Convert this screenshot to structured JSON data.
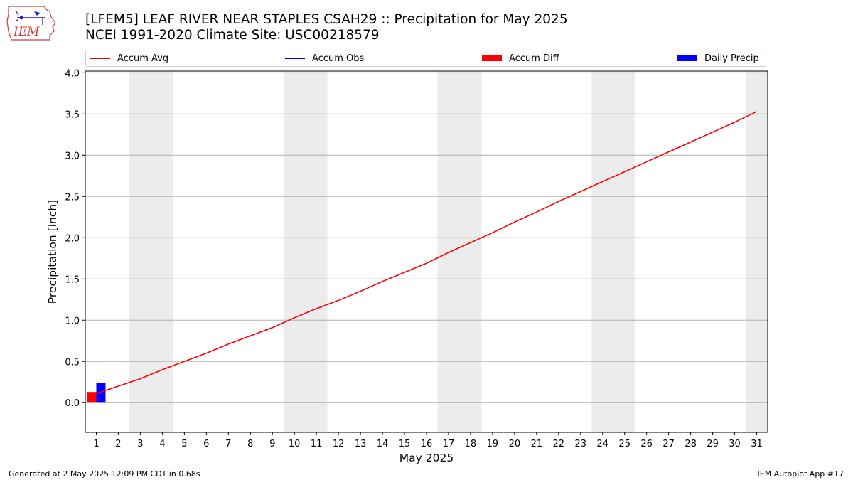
{
  "header": {
    "title_line1": "[LFEM5] LEAF RIVER NEAR STAPLES CSAH29 :: Precipitation for May 2025",
    "title_line2": "NCEI 1991-2020 Climate Site: USC00218579",
    "logo_text": "IEM"
  },
  "legend": [
    {
      "label": "Accum Avg",
      "color": "#ff0000",
      "kind": "line"
    },
    {
      "label": "Accum Obs",
      "color": "#0000ff",
      "kind": "line"
    },
    {
      "label": "Accum Diff",
      "color": "#ff0000",
      "kind": "box"
    },
    {
      "label": "Daily Precip",
      "color": "#0000ff",
      "kind": "box"
    }
  ],
  "footer": {
    "left": "Generated at 2 May 2025 12:09 PM CDT in 0.68s",
    "right": "IEM Autoplot App #17"
  },
  "chart_data": {
    "type": "line",
    "xlabel": "May 2025",
    "ylabel": "Precipitation [inch]",
    "xlim": [
      0.5,
      31.5
    ],
    "ylim": [
      -0.36,
      4.02
    ],
    "yticks": [
      0.0,
      0.5,
      1.0,
      1.5,
      2.0,
      2.5,
      3.0,
      3.5,
      4.0
    ],
    "ytick_labels": [
      "0.0",
      "0.5",
      "1.0",
      "1.5",
      "2.0",
      "2.5",
      "3.0",
      "3.5",
      "4.0"
    ],
    "xticks": [
      1,
      2,
      3,
      4,
      5,
      6,
      7,
      8,
      9,
      10,
      11,
      12,
      13,
      14,
      15,
      16,
      17,
      18,
      19,
      20,
      21,
      22,
      23,
      24,
      25,
      26,
      27,
      28,
      29,
      30,
      31
    ],
    "grid": "horizontal",
    "weekend_shading": [
      [
        2.5,
        4.5
      ],
      [
        9.5,
        11.5
      ],
      [
        16.5,
        18.5
      ],
      [
        23.5,
        25.5
      ],
      [
        30.5,
        31.5
      ]
    ],
    "weekend_color": "#ececec",
    "series": [
      {
        "name": "Accum Avg",
        "kind": "line",
        "color": "#ff0000",
        "x": [
          1,
          2,
          3,
          4,
          5,
          6,
          7,
          8,
          9,
          10,
          11,
          12,
          13,
          14,
          15,
          16,
          17,
          18,
          19,
          20,
          21,
          22,
          23,
          24,
          25,
          26,
          27,
          28,
          29,
          30,
          31
        ],
        "values": [
          0.11,
          0.2,
          0.29,
          0.4,
          0.5,
          0.6,
          0.71,
          0.81,
          0.91,
          1.03,
          1.14,
          1.24,
          1.35,
          1.47,
          1.58,
          1.69,
          1.82,
          1.94,
          2.06,
          2.19,
          2.31,
          2.44,
          2.56,
          2.68,
          2.8,
          2.92,
          3.04,
          3.16,
          3.28,
          3.4,
          3.53
        ]
      },
      {
        "name": "Accum Diff",
        "kind": "bar",
        "color": "#ff0000",
        "x": [
          1
        ],
        "values": [
          0.13
        ]
      },
      {
        "name": "Daily Precip",
        "kind": "bar",
        "color": "#0000ff",
        "x": [
          1
        ],
        "values": [
          0.24
        ]
      }
    ]
  }
}
